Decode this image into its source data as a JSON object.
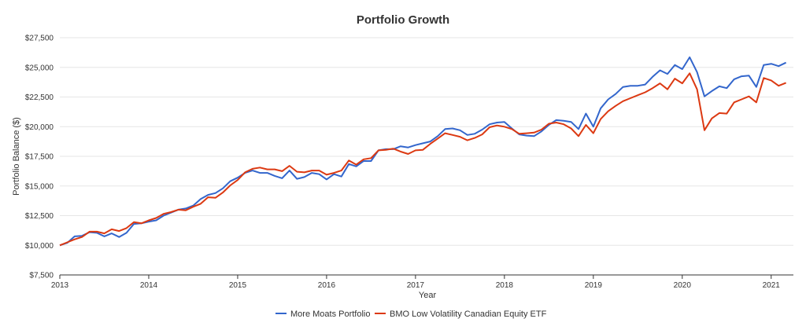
{
  "chart_data": {
    "type": "line",
    "title": "Portfolio Growth",
    "xlabel": "Year",
    "ylabel": "Portfolio Balance ($)",
    "xlim": [
      2013.0,
      2021.25
    ],
    "ylim": [
      7500,
      27500
    ],
    "x_ticks": [
      2013,
      2014,
      2015,
      2016,
      2017,
      2018,
      2019,
      2020,
      2021
    ],
    "y_ticks": [
      7500,
      10000,
      12500,
      15000,
      17500,
      20000,
      22500,
      25000,
      27500
    ],
    "y_tick_labels": [
      "$7,500",
      "$10,000",
      "$12,500",
      "$15,000",
      "$17,500",
      "$20,000",
      "$22,500",
      "$25,000",
      "$27,500"
    ],
    "grid": true,
    "legend_position": "bottom",
    "colors": {
      "series1": "#3366cc",
      "series2": "#dc3912"
    },
    "x": [
      2013.0,
      2013.0833,
      2013.1667,
      2013.25,
      2013.3333,
      2013.4167,
      2013.5,
      2013.5833,
      2013.6667,
      2013.75,
      2013.8333,
      2013.9167,
      2014.0,
      2014.0833,
      2014.1667,
      2014.25,
      2014.3333,
      2014.4167,
      2014.5,
      2014.5833,
      2014.6667,
      2014.75,
      2014.8333,
      2014.9167,
      2015.0,
      2015.0833,
      2015.1667,
      2015.25,
      2015.3333,
      2015.4167,
      2015.5,
      2015.5833,
      2015.6667,
      2015.75,
      2015.8333,
      2015.9167,
      2016.0,
      2016.0833,
      2016.1667,
      2016.25,
      2016.3333,
      2016.4167,
      2016.5,
      2016.5833,
      2016.6667,
      2016.75,
      2016.8333,
      2016.9167,
      2017.0,
      2017.0833,
      2017.1667,
      2017.25,
      2017.3333,
      2017.4167,
      2017.5,
      2017.5833,
      2017.6667,
      2017.75,
      2017.8333,
      2017.9167,
      2018.0,
      2018.0833,
      2018.1667,
      2018.25,
      2018.3333,
      2018.4167,
      2018.5,
      2018.5833,
      2018.6667,
      2018.75,
      2018.8333,
      2018.9167,
      2019.0,
      2019.0833,
      2019.1667,
      2019.25,
      2019.3333,
      2019.4167,
      2019.5,
      2019.5833,
      2019.6667,
      2019.75,
      2019.8333,
      2019.9167,
      2020.0,
      2020.0833,
      2020.1667,
      2020.25,
      2020.3333,
      2020.4167,
      2020.5,
      2020.5833,
      2020.6667,
      2020.75,
      2020.8333,
      2020.9167,
      2021.0,
      2021.0833,
      2021.1667
    ],
    "series": [
      {
        "name": "More Moats Portfolio",
        "values": [
          10000,
          10200,
          10750,
          10800,
          11100,
          11050,
          10750,
          11000,
          10700,
          11050,
          11800,
          11850,
          12000,
          12100,
          12500,
          12750,
          13000,
          13100,
          13350,
          13900,
          14250,
          14400,
          14800,
          15400,
          15700,
          16100,
          16300,
          16100,
          16100,
          15850,
          15650,
          16300,
          15600,
          15750,
          16100,
          16000,
          15550,
          16000,
          15800,
          16850,
          16650,
          17100,
          17100,
          18000,
          18100,
          18100,
          18350,
          18250,
          18450,
          18600,
          18750,
          19200,
          19800,
          19850,
          19700,
          19300,
          19400,
          19750,
          20200,
          20350,
          20400,
          19850,
          19350,
          19250,
          19200,
          19600,
          20150,
          20550,
          20500,
          20400,
          19800,
          21100,
          20000,
          21550,
          22300,
          22750,
          23350,
          23450,
          23450,
          23550,
          24200,
          24750,
          24450,
          25200,
          24850,
          25850,
          24600,
          22550,
          23000,
          23400,
          23250,
          24000,
          24250,
          24300,
          23350,
          25200,
          25300,
          25100,
          25400
        ]
      },
      {
        "name": "BMO Low Volatility Canadian Equity ETF",
        "values": [
          10000,
          10250,
          10500,
          10700,
          11150,
          11150,
          11000,
          11350,
          11200,
          11450,
          11950,
          11850,
          12100,
          12300,
          12650,
          12800,
          13000,
          12950,
          13250,
          13500,
          14050,
          14000,
          14450,
          15050,
          15500,
          16150,
          16450,
          16550,
          16400,
          16400,
          16250,
          16700,
          16200,
          16150,
          16300,
          16300,
          15950,
          16100,
          16300,
          17150,
          16800,
          17250,
          17350,
          18000,
          18050,
          18150,
          17900,
          17700,
          18000,
          18050,
          18550,
          19000,
          19450,
          19300,
          19150,
          18850,
          19050,
          19350,
          19950,
          20100,
          20000,
          19800,
          19400,
          19450,
          19500,
          19750,
          20250,
          20350,
          20200,
          19850,
          19200,
          20150,
          19450,
          20650,
          21300,
          21750,
          22150,
          22400,
          22650,
          22900,
          23250,
          23650,
          23150,
          24050,
          23650,
          24500,
          23150,
          19700,
          20700,
          21150,
          21100,
          22050,
          22300,
          22550,
          22050,
          24100,
          23900,
          23450,
          23700
        ]
      }
    ]
  }
}
